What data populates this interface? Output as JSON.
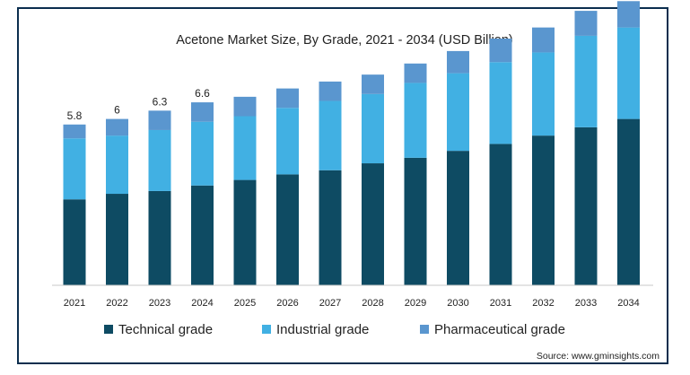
{
  "chart_data": {
    "type": "bar",
    "stacked": true,
    "title": "Acetone Market Size, By Grade, 2021 - 2034 (USD Billion)",
    "xlabel": "",
    "ylabel": "",
    "categories": [
      "2021",
      "2022",
      "2023",
      "2024",
      "2025",
      "2026",
      "2027",
      "2028",
      "2029",
      "2030",
      "2031",
      "2032",
      "2033",
      "2034"
    ],
    "series": [
      {
        "name": "Technical grade",
        "color": "#0e4b63",
        "values": [
          3.1,
          3.3,
          3.4,
          3.6,
          3.8,
          4.0,
          4.15,
          4.4,
          4.6,
          4.85,
          5.1,
          5.4,
          5.7,
          6.0
        ]
      },
      {
        "name": "Industrial grade",
        "color": "#41b0e3",
        "values": [
          2.2,
          2.1,
          2.2,
          2.3,
          2.3,
          2.4,
          2.5,
          2.5,
          2.7,
          2.8,
          2.95,
          3.0,
          3.3,
          3.3
        ]
      },
      {
        "name": "Pharmaceutical grade",
        "color": "#5a96cf",
        "values": [
          0.5,
          0.6,
          0.7,
          0.7,
          0.7,
          0.7,
          0.7,
          0.7,
          0.7,
          0.8,
          0.85,
          0.9,
          0.9,
          0.95
        ]
      }
    ],
    "data_labels": [
      "5.8",
      "6",
      "6.3",
      "6.6"
    ],
    "ylim": [
      0,
      10.5
    ],
    "grid": false,
    "legend_position": "bottom"
  },
  "source": "Source: www.gminsights.com"
}
